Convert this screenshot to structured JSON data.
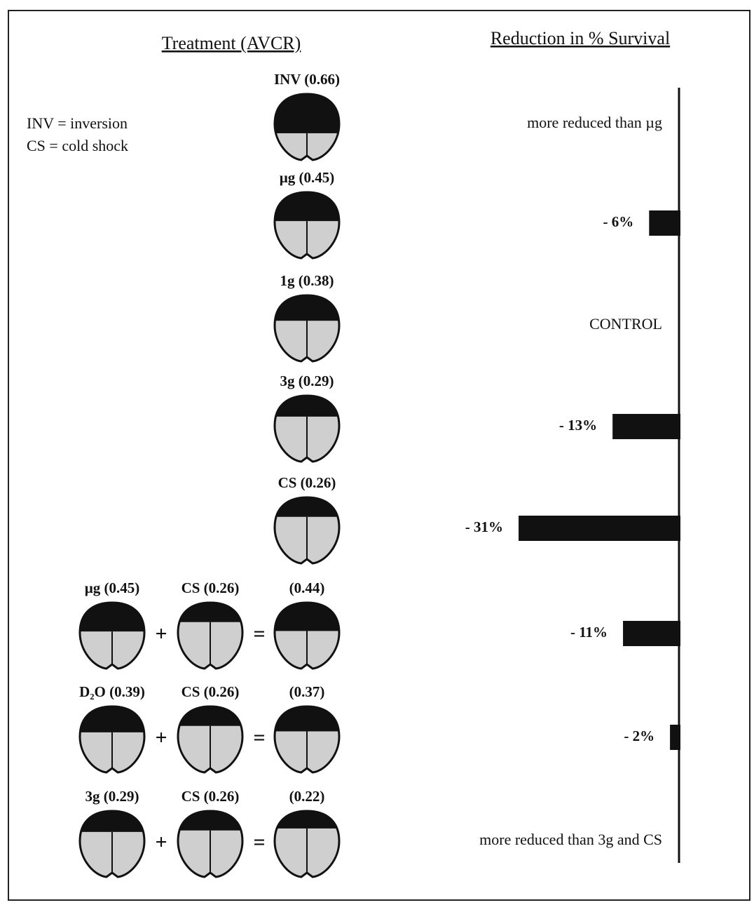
{
  "header": {
    "treatment": "Treatment (AVCR)",
    "reduction": "Reduction in % Survival"
  },
  "legend": [
    "INV = inversion",
    "CS = cold shock"
  ],
  "operators": {
    "plus": "+",
    "equals": "="
  },
  "rows": [
    {
      "icons": [
        {
          "label": "INV (0.66)",
          "avcr": 0.66
        }
      ],
      "effect": {
        "text": "more reduced than µg"
      }
    },
    {
      "icons": [
        {
          "label": "µg (0.45)",
          "avcr": 0.45
        }
      ],
      "effect": {
        "value": 6,
        "label": "- 6%"
      }
    },
    {
      "icons": [
        {
          "label": "1g (0.38)",
          "avcr": 0.38
        }
      ],
      "effect": {
        "text": "CONTROL"
      }
    },
    {
      "icons": [
        {
          "label": "3g (0.29)",
          "avcr": 0.29
        }
      ],
      "effect": {
        "value": 13,
        "label": "- 13%"
      }
    },
    {
      "icons": [
        {
          "label": "CS (0.26)",
          "avcr": 0.26
        }
      ],
      "effect": {
        "value": 31,
        "label": "- 31%"
      }
    },
    {
      "icons": [
        {
          "label": "µg (0.45)",
          "avcr": 0.45
        },
        {
          "label": "CS (0.26)",
          "avcr": 0.26
        },
        {
          "label": "(0.44)",
          "avcr": 0.44
        }
      ],
      "effect": {
        "value": 11,
        "label": "- 11%"
      }
    },
    {
      "icons": [
        {
          "label": "D₂O (0.39)",
          "avcr": 0.39
        },
        {
          "label": "CS (0.26)",
          "avcr": 0.26
        },
        {
          "label": "(0.37)",
          "avcr": 0.37
        }
      ],
      "effect": {
        "value": 2,
        "label": "- 2%"
      }
    },
    {
      "icons": [
        {
          "label": "3g (0.29)",
          "avcr": 0.29
        },
        {
          "label": "CS (0.26)",
          "avcr": 0.26
        },
        {
          "label": "(0.22)",
          "avcr": 0.22
        }
      ],
      "effect": {
        "text": "more reduced than 3g and CS"
      }
    }
  ]
}
